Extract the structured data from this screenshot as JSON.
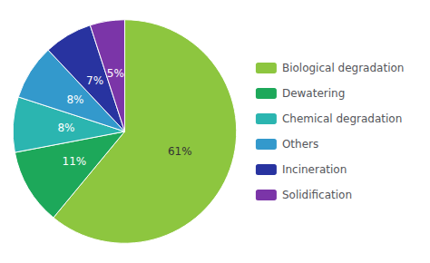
{
  "chart_data": {
    "type": "pie",
    "categories": [
      "Biological degradation",
      "Dewatering",
      "Chemical degradation",
      "Others",
      "Incineration",
      "Solidification"
    ],
    "values": [
      61,
      11,
      8,
      8,
      7,
      5
    ],
    "value_labels": [
      "61%",
      "11%",
      "8%",
      "8%",
      "7%",
      "5%"
    ],
    "colors": [
      "#8dc63f",
      "#1da85a",
      "#2bb5b0",
      "#3399cc",
      "#2833a0",
      "#7b35a8"
    ],
    "data_labels": true,
    "legend": "right"
  }
}
